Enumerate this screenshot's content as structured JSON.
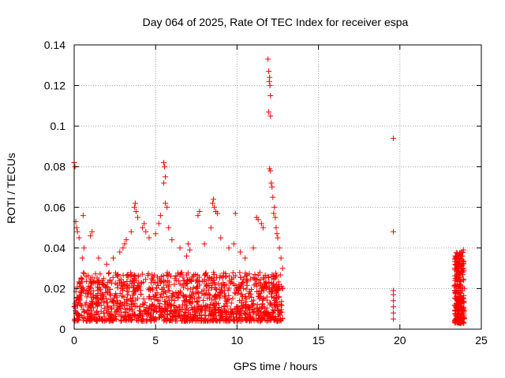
{
  "chart_data": {
    "type": "scatter",
    "title": "Day 064 of 2025, Rate Of TEC Index for receiver espa",
    "xlabel": "GPS time / hours",
    "ylabel": "ROTI / TECUs",
    "xlim": [
      0,
      25
    ],
    "ylim": [
      0,
      0.14
    ],
    "x_ticks": [
      "0",
      "5",
      "10",
      "15",
      "20",
      "25"
    ],
    "y_ticks": [
      "0",
      "0.02",
      "0.04",
      "0.06",
      "0.08",
      "0.1",
      "0.12",
      "0.14"
    ],
    "grid": true,
    "marker": "+",
    "series": [
      {
        "color": "#ff0000",
        "points": [
          [
            0.0,
            0.082
          ],
          [
            0.05,
            0.08
          ],
          [
            0.1,
            0.053
          ],
          [
            0.15,
            0.05
          ],
          [
            0.2,
            0.048
          ],
          [
            0.3,
            0.045
          ],
          [
            0.5,
            0.035
          ],
          [
            0.6,
            0.04
          ],
          [
            0.55,
            0.056
          ],
          [
            1.0,
            0.046
          ],
          [
            1.1,
            0.048
          ],
          [
            1.5,
            0.035
          ],
          [
            2.0,
            0.032
          ],
          [
            2.4,
            0.035
          ],
          [
            2.8,
            0.038
          ],
          [
            3.0,
            0.04
          ],
          [
            3.1,
            0.042
          ],
          [
            3.2,
            0.044
          ],
          [
            3.5,
            0.048
          ],
          [
            3.7,
            0.06
          ],
          [
            3.75,
            0.062
          ],
          [
            3.8,
            0.058
          ],
          [
            3.9,
            0.055
          ],
          [
            4.2,
            0.05
          ],
          [
            4.3,
            0.052
          ],
          [
            4.4,
            0.048
          ],
          [
            4.6,
            0.045
          ],
          [
            5.0,
            0.047
          ],
          [
            5.2,
            0.052
          ],
          [
            5.3,
            0.056
          ],
          [
            5.5,
            0.082
          ],
          [
            5.55,
            0.08
          ],
          [
            5.6,
            0.075
          ],
          [
            5.5,
            0.072
          ],
          [
            5.6,
            0.062
          ],
          [
            5.7,
            0.06
          ],
          [
            5.8,
            0.05
          ],
          [
            6.0,
            0.044
          ],
          [
            6.5,
            0.04
          ],
          [
            6.9,
            0.036
          ],
          [
            7.0,
            0.042
          ],
          [
            7.1,
            0.039
          ],
          [
            7.6,
            0.056
          ],
          [
            7.7,
            0.058
          ],
          [
            8.0,
            0.042
          ],
          [
            8.4,
            0.05
          ],
          [
            8.5,
            0.062
          ],
          [
            8.55,
            0.064
          ],
          [
            8.6,
            0.06
          ],
          [
            8.7,
            0.058
          ],
          [
            8.8,
            0.057
          ],
          [
            9.0,
            0.045
          ],
          [
            9.5,
            0.04
          ],
          [
            9.8,
            0.042
          ],
          [
            9.9,
            0.057
          ],
          [
            10.2,
            0.038
          ],
          [
            10.5,
            0.035
          ],
          [
            11.0,
            0.04
          ],
          [
            11.2,
            0.055
          ],
          [
            11.3,
            0.054
          ],
          [
            11.5,
            0.052
          ],
          [
            11.6,
            0.05
          ],
          [
            11.9,
            0.133
          ],
          [
            11.95,
            0.127
          ],
          [
            12.0,
            0.124
          ],
          [
            11.98,
            0.122
          ],
          [
            12.02,
            0.12
          ],
          [
            12.05,
            0.115
          ],
          [
            11.95,
            0.107
          ],
          [
            12.05,
            0.105
          ],
          [
            12.0,
            0.079
          ],
          [
            12.05,
            0.078
          ],
          [
            12.1,
            0.072
          ],
          [
            12.15,
            0.07
          ],
          [
            12.2,
            0.065
          ],
          [
            12.3,
            0.06
          ],
          [
            12.25,
            0.057
          ],
          [
            12.35,
            0.055
          ],
          [
            12.4,
            0.05
          ],
          [
            12.45,
            0.047
          ],
          [
            12.5,
            0.045
          ],
          [
            12.6,
            0.04
          ],
          [
            12.7,
            0.035
          ],
          [
            12.8,
            0.03
          ],
          [
            12.8,
            0.02
          ],
          [
            12.7,
            0.012
          ],
          [
            19.6,
            0.094
          ],
          [
            19.6,
            0.048
          ],
          [
            19.6,
            0.019
          ],
          [
            19.6,
            0.017
          ],
          [
            19.6,
            0.014
          ],
          [
            19.6,
            0.011
          ],
          [
            19.6,
            0.008
          ],
          [
            19.6,
            0.005
          ],
          [
            23.4,
            0.036
          ],
          [
            23.5,
            0.033
          ],
          [
            23.5,
            0.028
          ],
          [
            23.6,
            0.035
          ],
          [
            23.7,
            0.037
          ],
          [
            23.8,
            0.038
          ],
          [
            23.9,
            0.039
          ],
          [
            23.85,
            0.036
          ],
          [
            23.75,
            0.032
          ],
          [
            23.6,
            0.028
          ],
          [
            23.5,
            0.022
          ],
          [
            23.45,
            0.018
          ],
          [
            23.5,
            0.012
          ],
          [
            23.55,
            0.008
          ],
          [
            23.6,
            0.005
          ],
          [
            23.7,
            0.004
          ],
          [
            23.8,
            0.006
          ],
          [
            23.85,
            0.01
          ],
          [
            23.9,
            0.015
          ],
          [
            23.95,
            0.02
          ]
        ],
        "band": {
          "x_start": 0,
          "x_end": 12.8,
          "y_min": 0.004,
          "y_max": 0.028,
          "count": 1400
        },
        "band2": {
          "x_start": 23.35,
          "x_end": 23.95,
          "y_min": 0.003,
          "y_max": 0.038,
          "count": 260
        }
      }
    ]
  }
}
